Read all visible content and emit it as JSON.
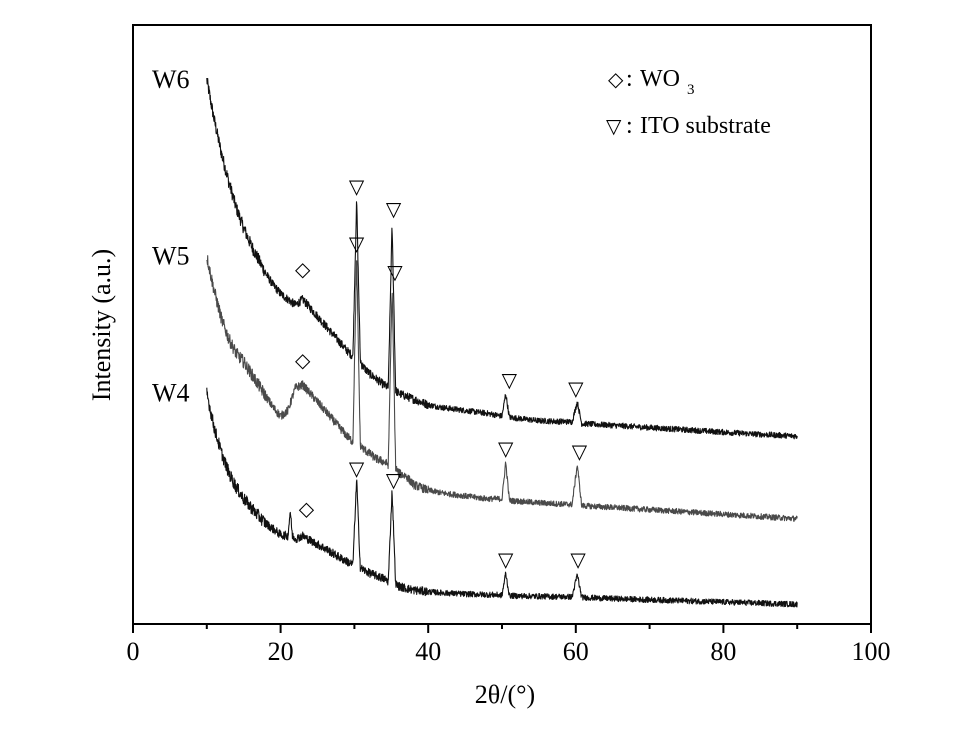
{
  "chart_data": {
    "type": "line",
    "title": "",
    "xlabel": "2θ/(°)",
    "ylabel": "Intensity (a.u.)",
    "xlim": [
      0,
      100
    ],
    "xticks": [
      0,
      20,
      40,
      60,
      80,
      100
    ],
    "x_range_measured": [
      10,
      90
    ],
    "grid": false,
    "series": [
      {
        "name": "W6",
        "points": [
          [
            10,
            9.3
          ],
          [
            11,
            8.6
          ],
          [
            12,
            8.0
          ],
          [
            13,
            7.5
          ],
          [
            14,
            7.05
          ],
          [
            15,
            6.7
          ],
          [
            16,
            6.4
          ],
          [
            17,
            6.15
          ],
          [
            18,
            5.9
          ],
          [
            19,
            5.7
          ],
          [
            20,
            5.55
          ],
          [
            21,
            5.45
          ],
          [
            22,
            5.35
          ],
          [
            23,
            5.45
          ],
          [
            24,
            5.3
          ],
          [
            25,
            5.15
          ],
          [
            26,
            5.0
          ],
          [
            27,
            4.85
          ],
          [
            28,
            4.7
          ],
          [
            29,
            4.55
          ],
          [
            29.8,
            4.45
          ],
          [
            30.3,
            7.2
          ],
          [
            30.8,
            4.4
          ],
          [
            31,
            4.3
          ],
          [
            32,
            4.15
          ],
          [
            33,
            4.05
          ],
          [
            34,
            3.95
          ],
          [
            34.6,
            3.9
          ],
          [
            35.1,
            6.75
          ],
          [
            35.6,
            3.85
          ],
          [
            36,
            3.8
          ],
          [
            37,
            3.75
          ],
          [
            38,
            3.7
          ],
          [
            40,
            3.6
          ],
          [
            42,
            3.55
          ],
          [
            45,
            3.5
          ],
          [
            48,
            3.45
          ],
          [
            50,
            3.4
          ],
          [
            50.5,
            3.8
          ],
          [
            51,
            3.38
          ],
          [
            55,
            3.32
          ],
          [
            59.5,
            3.3
          ],
          [
            60.2,
            3.65
          ],
          [
            60.8,
            3.27
          ],
          [
            65,
            3.24
          ],
          [
            70,
            3.2
          ],
          [
            75,
            3.16
          ],
          [
            80,
            3.12
          ],
          [
            85,
            3.08
          ],
          [
            90,
            3.05
          ]
        ]
      },
      {
        "name": "W5",
        "points": [
          [
            10,
            6.2
          ],
          [
            11,
            5.6
          ],
          [
            12,
            5.1
          ],
          [
            13,
            4.75
          ],
          [
            14,
            4.5
          ],
          [
            15,
            4.35
          ],
          [
            16,
            4.15
          ],
          [
            17,
            3.95
          ],
          [
            18,
            3.75
          ],
          [
            19,
            3.55
          ],
          [
            20,
            3.4
          ],
          [
            21,
            3.5
          ],
          [
            22,
            3.9
          ],
          [
            23,
            3.95
          ],
          [
            24,
            3.8
          ],
          [
            25,
            3.65
          ],
          [
            26,
            3.5
          ],
          [
            27,
            3.35
          ],
          [
            28,
            3.2
          ],
          [
            29,
            3.05
          ],
          [
            29.8,
            2.95
          ],
          [
            30.3,
            6.2
          ],
          [
            30.8,
            2.9
          ],
          [
            31,
            2.85
          ],
          [
            32,
            2.75
          ],
          [
            33,
            2.65
          ],
          [
            34,
            2.6
          ],
          [
            34.6,
            2.55
          ],
          [
            35.1,
            5.65
          ],
          [
            35.6,
            2.5
          ],
          [
            36,
            2.4
          ],
          [
            37,
            2.35
          ],
          [
            38,
            2.2
          ],
          [
            40,
            2.1
          ],
          [
            42,
            2.05
          ],
          [
            45,
            2.0
          ],
          [
            48,
            1.95
          ],
          [
            50,
            1.95
          ],
          [
            50.5,
            2.6
          ],
          [
            51,
            1.92
          ],
          [
            55,
            1.88
          ],
          [
            59.5,
            1.85
          ],
          [
            60.2,
            2.55
          ],
          [
            60.8,
            1.83
          ],
          [
            65,
            1.8
          ],
          [
            70,
            1.76
          ],
          [
            75,
            1.72
          ],
          [
            80,
            1.68
          ],
          [
            85,
            1.64
          ],
          [
            90,
            1.6
          ]
        ]
      },
      {
        "name": "W4",
        "points": [
          [
            10,
            3.8
          ],
          [
            11,
            3.2
          ],
          [
            12,
            2.75
          ],
          [
            13,
            2.4
          ],
          [
            14,
            2.15
          ],
          [
            15,
            1.95
          ],
          [
            16,
            1.8
          ],
          [
            17,
            1.65
          ],
          [
            18,
            1.52
          ],
          [
            19,
            1.42
          ],
          [
            20,
            1.32
          ],
          [
            21,
            1.3
          ],
          [
            21.3,
            1.75
          ],
          [
            21.6,
            1.3
          ],
          [
            22,
            1.25
          ],
          [
            23,
            1.3
          ],
          [
            24,
            1.22
          ],
          [
            25,
            1.15
          ],
          [
            26,
            1.08
          ],
          [
            27,
            1.0
          ],
          [
            28,
            0.92
          ],
          [
            29,
            0.85
          ],
          [
            29.8,
            0.8
          ],
          [
            30.3,
            2.3
          ],
          [
            30.8,
            0.75
          ],
          [
            31,
            0.72
          ],
          [
            32,
            0.65
          ],
          [
            33,
            0.6
          ],
          [
            34,
            0.55
          ],
          [
            34.6,
            0.5
          ],
          [
            35.1,
            2.1
          ],
          [
            35.6,
            0.45
          ],
          [
            36,
            0.42
          ],
          [
            37,
            0.38
          ],
          [
            38,
            0.35
          ],
          [
            40,
            0.32
          ],
          [
            42,
            0.3
          ],
          [
            45,
            0.28
          ],
          [
            48,
            0.27
          ],
          [
            50,
            0.26
          ],
          [
            50.5,
            0.65
          ],
          [
            51,
            0.25
          ],
          [
            55,
            0.24
          ],
          [
            59.5,
            0.23
          ],
          [
            60.2,
            0.62
          ],
          [
            60.8,
            0.22
          ],
          [
            65,
            0.2
          ],
          [
            70,
            0.18
          ],
          [
            75,
            0.16
          ],
          [
            80,
            0.14
          ],
          [
            85,
            0.12
          ],
          [
            90,
            0.1
          ]
        ]
      }
    ],
    "legend": {
      "position": "top-right",
      "entries": [
        {
          "marker": "◇",
          "separator": ":",
          "text": "WO",
          "subscript": "3"
        },
        {
          "marker": "▽",
          "separator": ":",
          "text": "ITO substrate"
        }
      ]
    },
    "annotations": [
      {
        "series": "W6",
        "symbol": "◇",
        "x": 23,
        "y": 6.0
      },
      {
        "series": "W6",
        "symbol": "▽",
        "x": 30.3,
        "y": 7.45
      },
      {
        "series": "W6",
        "symbol": "▽",
        "x": 35.3,
        "y": 7.05
      },
      {
        "series": "W6",
        "symbol": "▽",
        "x": 51,
        "y": 4.05
      },
      {
        "series": "W6",
        "symbol": "▽",
        "x": 60,
        "y": 3.9
      },
      {
        "series": "W5",
        "symbol": "◇",
        "x": 23,
        "y": 4.4
      },
      {
        "series": "W5",
        "symbol": "▽",
        "x": 30.3,
        "y": 6.45
      },
      {
        "series": "W5",
        "symbol": "▽",
        "x": 35.5,
        "y": 5.95
      },
      {
        "series": "W5",
        "symbol": "▽",
        "x": 50.5,
        "y": 2.85
      },
      {
        "series": "W5",
        "symbol": "▽",
        "x": 60.5,
        "y": 2.8
      },
      {
        "series": "W4",
        "symbol": "◇",
        "x": 23.5,
        "y": 1.8
      },
      {
        "series": "W4",
        "symbol": "▽",
        "x": 30.3,
        "y": 2.5
      },
      {
        "series": "W4",
        "symbol": "▽",
        "x": 35.3,
        "y": 2.3
      },
      {
        "series": "W4",
        "symbol": "▽",
        "x": 50.5,
        "y": 0.9
      },
      {
        "series": "W4",
        "symbol": "▽",
        "x": 60.3,
        "y": 0.9
      }
    ],
    "colors": {
      "W6": "#111111",
      "W5": "#4a4a4a",
      "W4": "#111111"
    }
  }
}
